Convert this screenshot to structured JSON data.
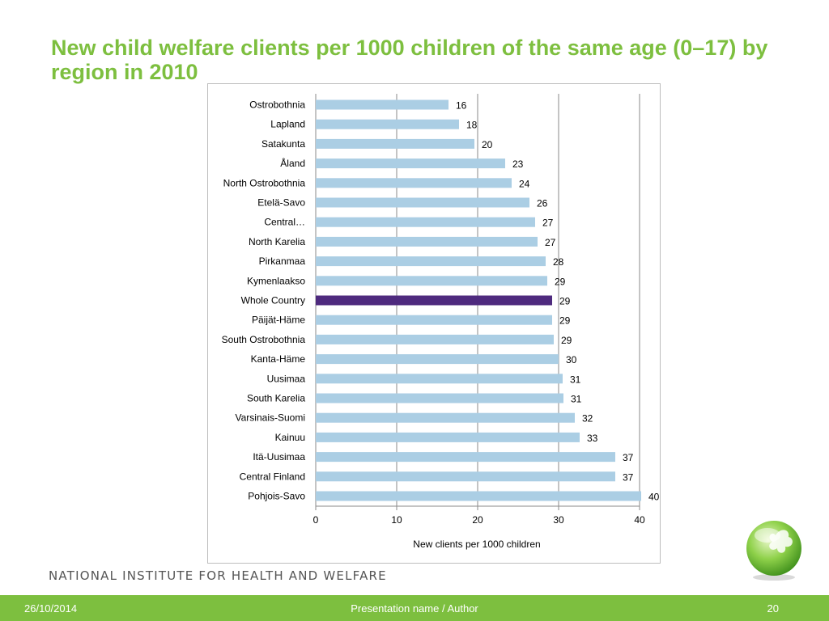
{
  "slide": {
    "title": "New child welfare clients per 1000 children of the same age (0–17) by region in 2010",
    "institute": "NATIONAL INSTITUTE FOR HEALTH AND WELFARE",
    "footer_date": "26/10/2014",
    "footer_center": "Presentation name / Author",
    "footer_page": "20"
  },
  "colors": {
    "title": "#7dbf3f",
    "bar": "#abcee4",
    "highlight_bar": "#4e2a7e",
    "footer": "#7dbf3f"
  },
  "icons": {
    "logo": "green-sphere-logo-icon"
  },
  "chart_data": {
    "type": "bar",
    "orientation": "horizontal",
    "categories": [
      "Ostrobothnia",
      "Lapland",
      "Satakunta",
      "Åland",
      "North Ostrobothnia",
      "Etelä-Savo",
      "Central…",
      "North Karelia",
      "Pirkanmaa",
      "Kymenlaakso",
      "Whole Country",
      "Päijät-Häme",
      "South Ostrobothnia",
      "Kanta-Häme",
      "Uusimaa",
      "South Karelia",
      "Varsinais-Suomi",
      "Kainuu",
      "Itä-Uusimaa",
      "Central Finland",
      "Pohjois-Savo"
    ],
    "values": [
      16.4,
      17.7,
      19.6,
      23.4,
      24.2,
      26.4,
      27.1,
      27.4,
      28.4,
      28.6,
      29.2,
      29.2,
      29.4,
      30.0,
      30.5,
      30.6,
      32.0,
      32.6,
      37.0,
      37.0,
      40.2
    ],
    "data_labels": [
      "16",
      "18",
      "20",
      "23",
      "24",
      "26",
      "27",
      "27",
      "28",
      "29",
      "29",
      "29",
      "29",
      "30",
      "31",
      "31",
      "32",
      "33",
      "37",
      "37",
      "40"
    ],
    "highlight": "Whole Country",
    "xlabel": "New clients per 1000 children",
    "xlim": [
      0,
      40
    ],
    "xticks": [
      0,
      10,
      20,
      30,
      40
    ],
    "grid": "vertical",
    "legend": "none"
  }
}
